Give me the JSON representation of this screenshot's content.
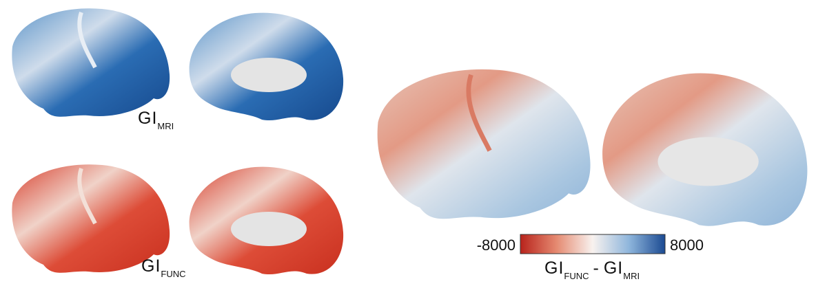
{
  "panels": [
    {
      "label": {
        "main": "GI",
        "sub": "MRI"
      }
    },
    {
      "label": {
        "main": "GI",
        "sub": "FUNC"
      }
    }
  ],
  "difference": {
    "label": {
      "left_main": "GI",
      "left_sub": "FUNC",
      "operator": "-",
      "right_main": "GI",
      "right_sub": "MRI"
    },
    "colorbar": {
      "min": -8000,
      "max": 8000
    }
  }
}
